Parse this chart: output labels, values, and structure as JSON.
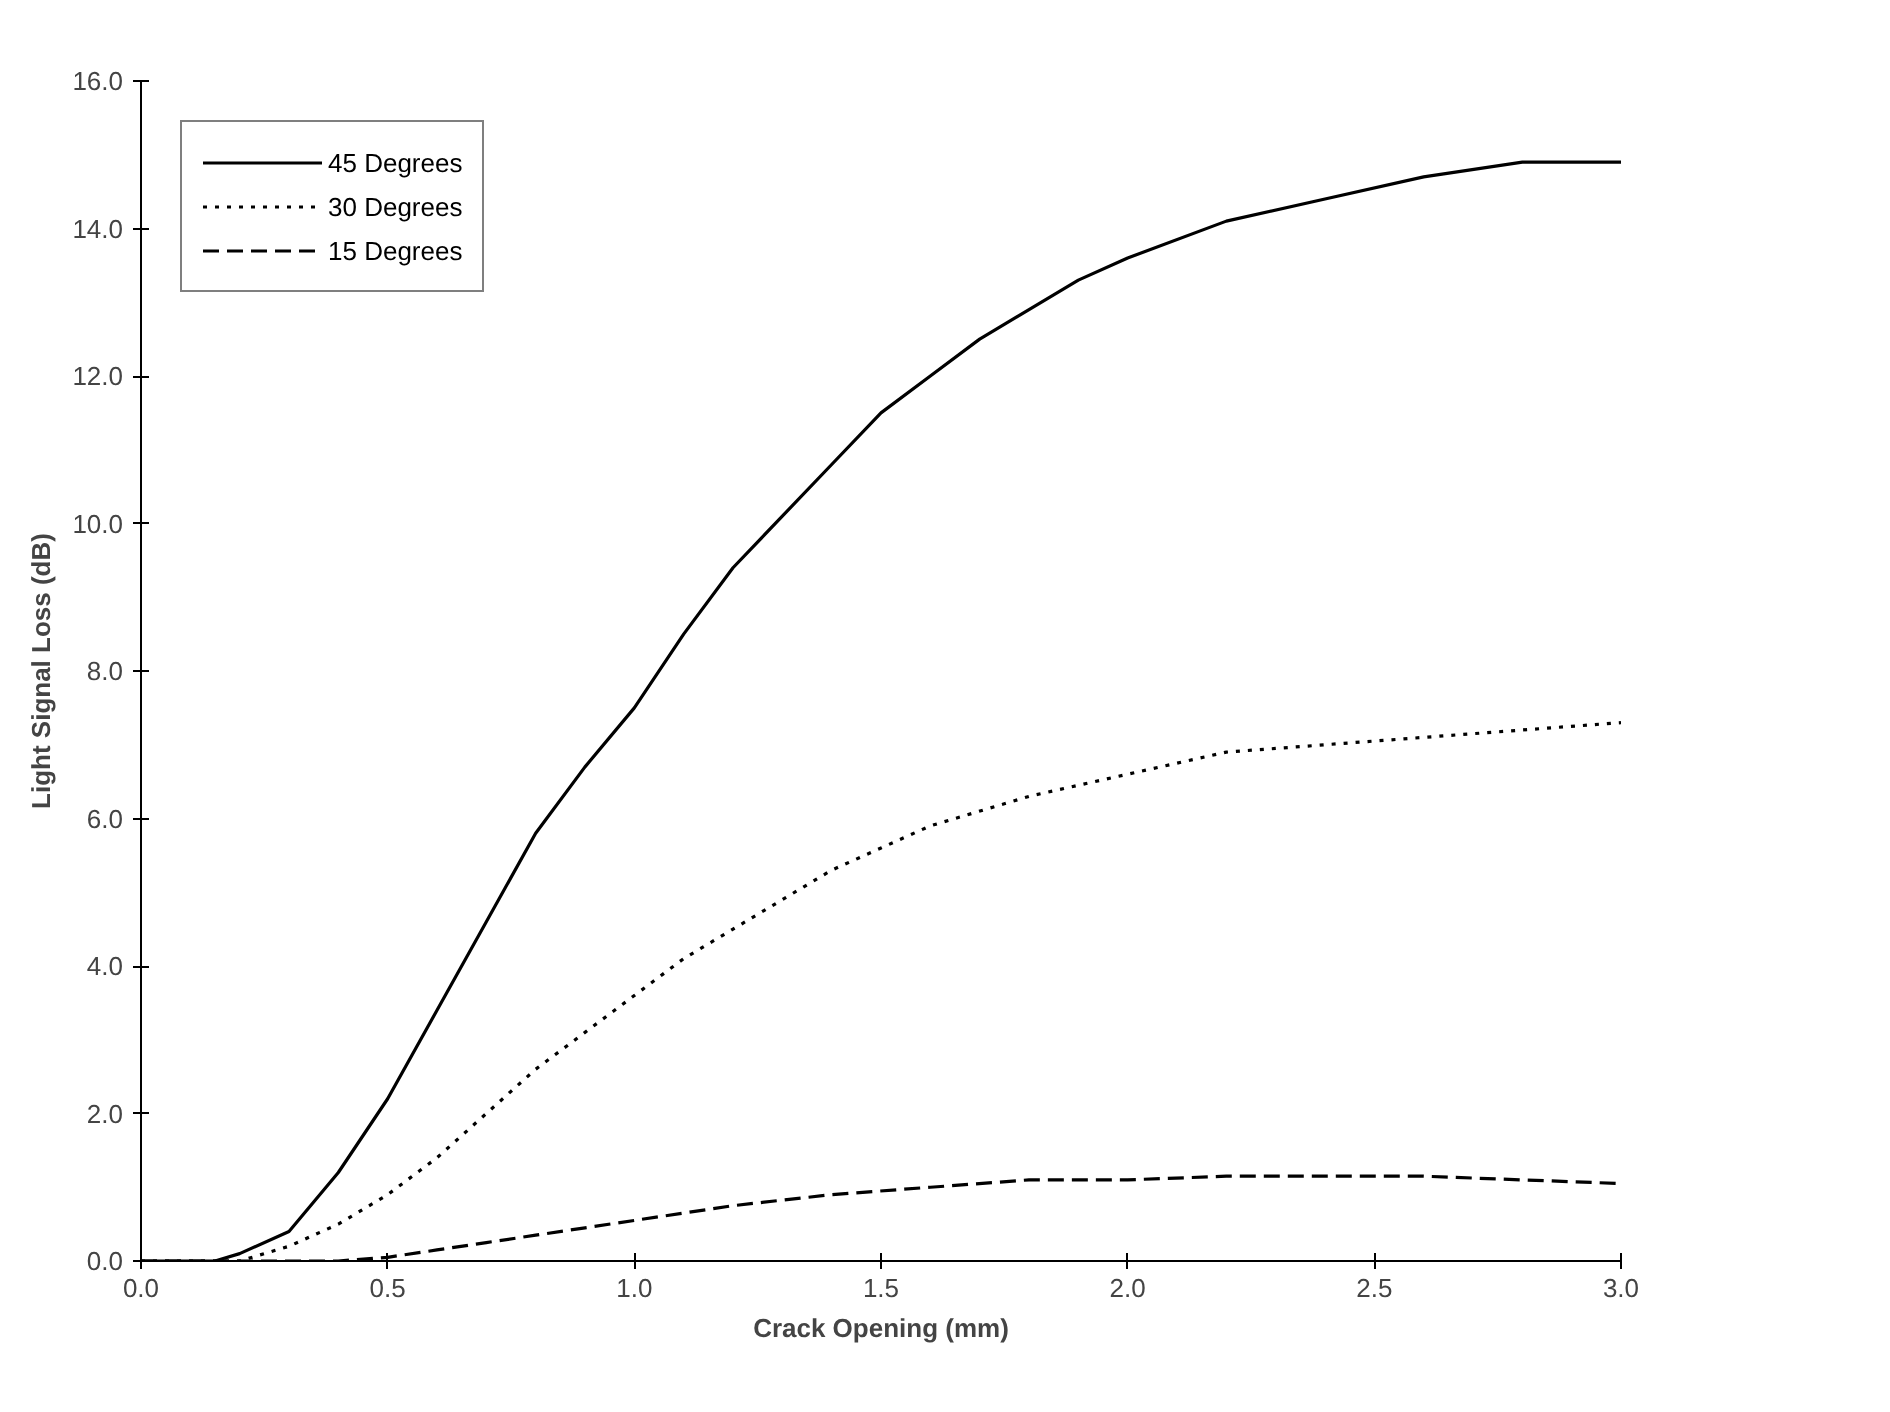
{
  "chart_data": {
    "type": "line",
    "xlabel": "Crack Opening (mm)",
    "ylabel": "Light Signal Loss (dB)",
    "xlim": [
      0,
      3
    ],
    "ylim": [
      0,
      16
    ],
    "xticks": [
      {
        "value": 0,
        "label": "0.0"
      },
      {
        "value": 0.5,
        "label": "0.5"
      },
      {
        "value": 1,
        "label": "1.0"
      },
      {
        "value": 1.5,
        "label": "1.5"
      },
      {
        "value": 2,
        "label": "2.0"
      },
      {
        "value": 2.5,
        "label": "2.5"
      },
      {
        "value": 3,
        "label": "3.0"
      }
    ],
    "yticks": [
      {
        "value": 0,
        "label": "0.0"
      },
      {
        "value": 2,
        "label": "2.0"
      },
      {
        "value": 4,
        "label": "4.0"
      },
      {
        "value": 6,
        "label": "6.0"
      },
      {
        "value": 8,
        "label": "8.0"
      },
      {
        "value": 10,
        "label": "10.0"
      },
      {
        "value": 12,
        "label": "12.0"
      },
      {
        "value": 14,
        "label": "14.0"
      },
      {
        "value": 16,
        "label": "16.0"
      }
    ],
    "grid": false,
    "legend": "top left",
    "marker": "none",
    "series": [
      {
        "name": "45 Degrees",
        "color": "#000000",
        "line_style": "solid",
        "x": [
          0,
          0.15,
          0.2,
          0.3,
          0.4,
          0.5,
          0.6,
          0.7,
          0.8,
          0.9,
          1.0,
          1.1,
          1.2,
          1.3,
          1.4,
          1.5,
          1.6,
          1.7,
          1.8,
          1.9,
          2.0,
          2.2,
          2.4,
          2.6,
          2.8,
          3.0
        ],
        "values": [
          0,
          0,
          0.1,
          0.4,
          1.2,
          2.2,
          3.4,
          4.6,
          5.8,
          6.7,
          7.5,
          8.5,
          9.4,
          10.1,
          10.8,
          11.5,
          12.0,
          12.5,
          12.9,
          13.3,
          13.6,
          14.1,
          14.4,
          14.7,
          14.9,
          14.9
        ]
      },
      {
        "name": "30 Degrees",
        "color": "#000000",
        "line_style": "dotted",
        "x": [
          0,
          0.2,
          0.3,
          0.4,
          0.5,
          0.6,
          0.7,
          0.8,
          0.9,
          1.0,
          1.1,
          1.2,
          1.3,
          1.4,
          1.5,
          1.6,
          1.8,
          2.0,
          2.2,
          2.4,
          2.6,
          2.8,
          3.0
        ],
        "values": [
          0,
          0,
          0.2,
          0.5,
          0.9,
          1.4,
          2.0,
          2.6,
          3.1,
          3.6,
          4.1,
          4.5,
          4.9,
          5.3,
          5.6,
          5.9,
          6.3,
          6.6,
          6.9,
          7.0,
          7.1,
          7.2,
          7.3
        ]
      },
      {
        "name": "15 Degrees",
        "color": "#000000",
        "line_style": "dashed",
        "x": [
          0,
          0.4,
          0.5,
          0.6,
          0.7,
          0.8,
          0.9,
          1.0,
          1.2,
          1.4,
          1.6,
          1.8,
          2.0,
          2.2,
          2.4,
          2.6,
          2.8,
          3.0
        ],
        "values": [
          0,
          0,
          0.05,
          0.15,
          0.25,
          0.35,
          0.45,
          0.55,
          0.75,
          0.9,
          1.0,
          1.1,
          1.1,
          1.15,
          1.15,
          1.15,
          1.1,
          1.05
        ]
      }
    ]
  }
}
